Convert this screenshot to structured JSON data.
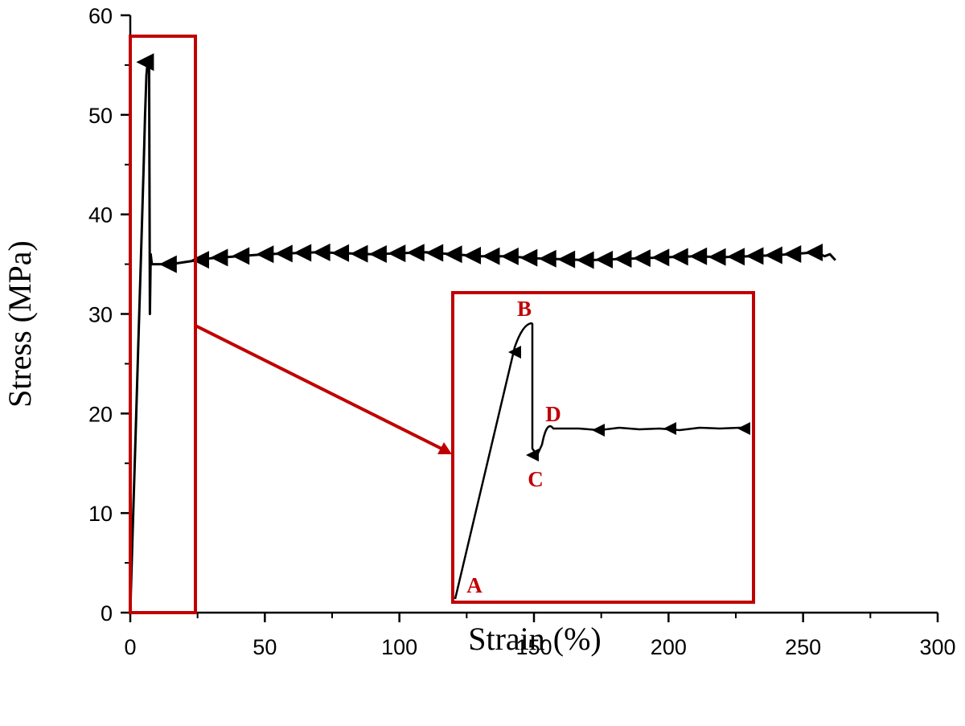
{
  "chart_data": {
    "type": "line",
    "xlabel": "Strain (%)",
    "ylabel": "Stress (MPa)",
    "xlim": [
      0,
      300
    ],
    "ylim": [
      0,
      60
    ],
    "xticks": [
      0,
      50,
      100,
      150,
      200,
      250,
      300
    ],
    "yticks": [
      0,
      10,
      20,
      30,
      40,
      50,
      60
    ],
    "grid": false,
    "series": [
      {
        "marker": "left-triangle",
        "color": "#000000",
        "x": [
          0,
          1,
          2,
          3,
          4,
          5,
          5.5,
          6,
          6.5,
          7,
          7.3,
          7.6,
          8,
          10,
          15,
          20,
          25,
          30,
          40,
          50,
          60,
          70,
          80,
          90,
          100,
          110,
          120,
          130,
          140,
          150,
          160,
          170,
          180,
          190,
          200,
          210,
          220,
          230,
          240,
          250,
          255,
          258,
          260,
          262
        ],
        "y": [
          0,
          9,
          18,
          27,
          36,
          45,
          50,
          54,
          55.5,
          55.5,
          30,
          36,
          35,
          35,
          35,
          35.2,
          35.4,
          35.6,
          35.8,
          36,
          36.1,
          36.2,
          36.1,
          36,
          36.1,
          36.2,
          36,
          35.8,
          35.8,
          35.6,
          35.5,
          35.4,
          35.5,
          35.6,
          35.7,
          35.8,
          35.7,
          35.8,
          35.9,
          36.1,
          36.2,
          35.8,
          36,
          35.4
        ],
        "marker_x": [
          5.5,
          14,
          26,
          33,
          41,
          50,
          57,
          64,
          71,
          78,
          85,
          92,
          99,
          106,
          113,
          120,
          127,
          134,
          141,
          148,
          155,
          162,
          169,
          176,
          183,
          190,
          197,
          204,
          211,
          218,
          225,
          232,
          239,
          246,
          254
        ]
      }
    ],
    "inset": {
      "description_labels": [
        "A",
        "B",
        "C",
        "D"
      ],
      "points": {
        "A": [
          0,
          0
        ],
        "B": [
          0.5,
          1.0
        ],
        "C": [
          0.52,
          0.05
        ],
        "D": [
          0.6,
          0.6
        ]
      }
    },
    "colors": {
      "highlight": "#c00000",
      "line": "#000000"
    }
  }
}
